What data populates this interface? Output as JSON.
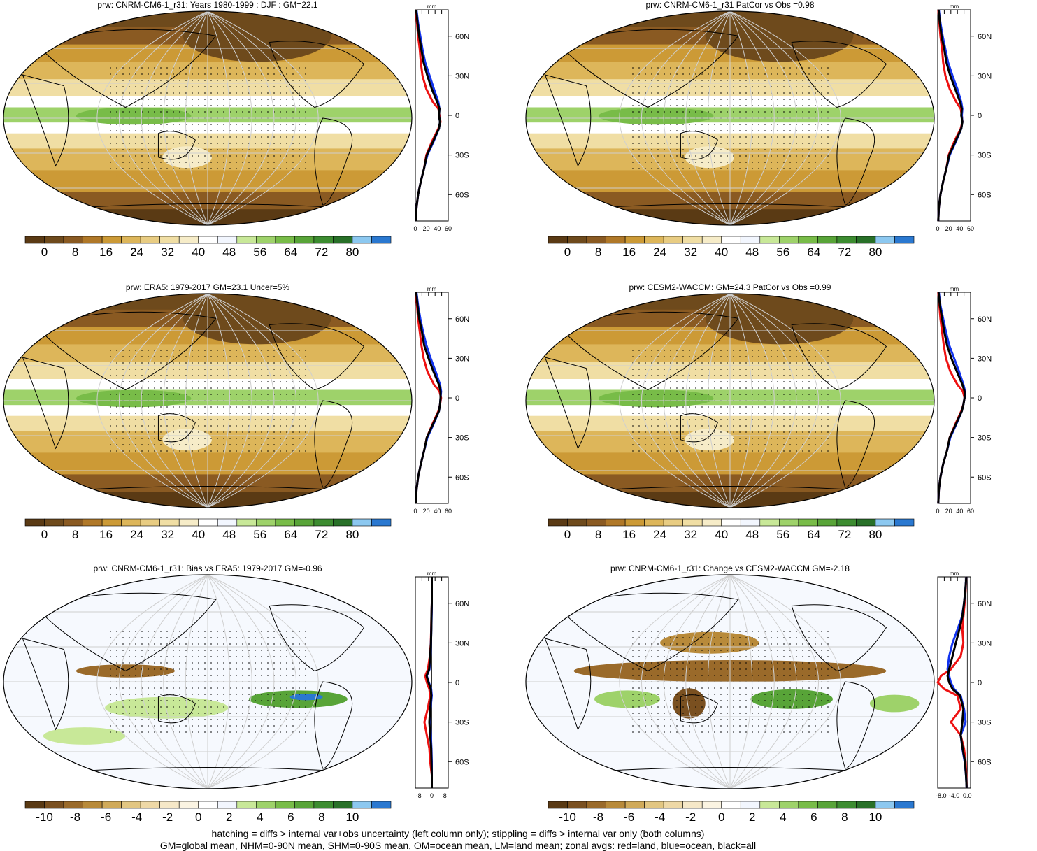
{
  "footer": {
    "line1": "hatching = diffs > internal var+obs uncertainty (left column only); stippling = diffs > internal var only (both columns)",
    "line2": "GM=global mean, NHM=0-90N mean, SHM=0-90S mean, OM=ocean mean, LM=land mean; zonal avgs: red=land, blue=ocean, black=all"
  },
  "colors": {
    "land": "#ee1111",
    "ocean": "#1133ee",
    "all": "#000000",
    "abs_palette": [
      "#5a3a14",
      "#6e4a1c",
      "#8a5a22",
      "#b07828",
      "#cc9a36",
      "#ddb65a",
      "#e8cc82",
      "#f0dea4",
      "#f6ecc8",
      "#ffffff",
      "#f2f6fe",
      "#c8e898",
      "#9ed26a",
      "#78bc48",
      "#58a438",
      "#3c8c30",
      "#287028",
      "#8cc8f0",
      "#2a78d0"
    ],
    "diff_palette": [
      "#5a3a14",
      "#7a5020",
      "#9a6a2a",
      "#b88a3a",
      "#d0aa5a",
      "#e2c682",
      "#eed8a6",
      "#f6e8c8",
      "#fbf4e2",
      "#ffffff",
      "#f2f6fe",
      "#c8e898",
      "#9ed26a",
      "#78bc48",
      "#58a438",
      "#3c8c30",
      "#287028",
      "#8cc8f0",
      "#2a78d0"
    ]
  },
  "chart_data": [
    {
      "type": "heatmap",
      "title": "prw: CNRM-CM6-1_r31: Years 1980-1999 : DJF : GM=22.1",
      "colorbar": {
        "ticks": [
          "0",
          "8",
          "16",
          "24",
          "32",
          "40",
          "48",
          "56",
          "64",
          "72",
          "80"
        ]
      },
      "zonal": {
        "unit": "mm",
        "ytick_labels": [
          "60N",
          "30N",
          "0",
          "30S",
          "60S"
        ],
        "xtick_labels": [
          "0",
          "20",
          "40",
          "60"
        ],
        "xlim": [
          0,
          60
        ],
        "lat": [
          80,
          70,
          60,
          50,
          40,
          30,
          20,
          10,
          5,
          0,
          -5,
          -10,
          -20,
          -30,
          -40,
          -50,
          -60,
          -70,
          -80
        ],
        "series": [
          {
            "name": "land",
            "values": [
              1,
              3,
              5,
              8,
              10,
              13,
              20,
              32,
              42,
              44,
              46,
              42,
              30,
              20,
              16,
              10,
              5,
              2,
              1
            ]
          },
          {
            "name": "ocean",
            "values": [
              2,
              5,
              9,
              13,
              18,
              26,
              34,
              42,
              44,
              43,
              45,
              43,
              33,
              22,
              16,
              10,
              5,
              2,
              1
            ]
          },
          {
            "name": "all",
            "values": [
              1.5,
              4,
              7,
              11,
              15,
              22,
              30,
              40,
              44,
              43,
              45,
              43,
              32,
              21,
              16,
              10,
              5,
              2,
              1
            ]
          }
        ]
      }
    },
    {
      "type": "heatmap",
      "title": "prw: CNRM-CM6-1_r31 PatCor vs Obs =0.98",
      "colorbar": {
        "ticks": [
          "0",
          "8",
          "16",
          "24",
          "32",
          "40",
          "48",
          "56",
          "64",
          "72",
          "80"
        ]
      },
      "zonal": {
        "unit": "mm",
        "ytick_labels": [
          "60N",
          "30N",
          "0",
          "30S",
          "60S"
        ],
        "xtick_labels": [
          "0",
          "20",
          "40",
          "60"
        ],
        "xlim": [
          0,
          60
        ],
        "lat": [
          80,
          70,
          60,
          50,
          40,
          30,
          20,
          10,
          5,
          0,
          -5,
          -10,
          -20,
          -30,
          -40,
          -50,
          -60,
          -70,
          -80
        ],
        "series": [
          {
            "name": "land",
            "values": [
              1,
              3,
              5,
              8,
              10,
              14,
              22,
              34,
              42,
              44,
              45,
              42,
              30,
              20,
              16,
              10,
              5,
              2,
              1
            ]
          },
          {
            "name": "ocean",
            "values": [
              2,
              5,
              9,
              14,
              19,
              27,
              36,
              43,
              45,
              44,
              45,
              43,
              33,
              22,
              16,
              10,
              5,
              2,
              1
            ]
          },
          {
            "name": "all",
            "values": [
              1.5,
              4,
              7,
              12,
              16,
              23,
              32,
              41,
              44,
              43,
              45,
              43,
              32,
              21,
              16,
              10,
              5,
              2,
              1
            ]
          }
        ]
      }
    },
    {
      "type": "heatmap",
      "title": "prw: ERA5: 1979-2017 GM=23.1 Uncer=5%",
      "colorbar": {
        "ticks": [
          "0",
          "8",
          "16",
          "24",
          "32",
          "40",
          "48",
          "56",
          "64",
          "72",
          "80"
        ]
      },
      "zonal": {
        "unit": "mm",
        "ytick_labels": [
          "60N",
          "30N",
          "0",
          "30S",
          "60S"
        ],
        "xtick_labels": [
          "0",
          "20",
          "40",
          "60"
        ],
        "xlim": [
          0,
          60
        ],
        "lat": [
          80,
          70,
          60,
          50,
          40,
          30,
          20,
          10,
          5,
          0,
          -5,
          -10,
          -20,
          -30,
          -40,
          -50,
          -60,
          -70,
          -80
        ],
        "series": [
          {
            "name": "land",
            "values": [
              1,
              3,
              5,
              8,
              11,
              15,
              22,
              34,
              44,
              47,
              45,
              42,
              31,
              21,
              16,
              10,
              5,
              2,
              1
            ]
          },
          {
            "name": "ocean",
            "values": [
              2,
              5,
              9,
              14,
              20,
              28,
              37,
              45,
              47,
              46,
              45,
              43,
              33,
              22,
              16,
              10,
              5,
              2,
              1
            ]
          },
          {
            "name": "all",
            "values": [
              1.5,
              4,
              7,
              12,
              16,
              24,
              33,
              43,
              46,
              46,
              45,
              43,
              32,
              21,
              16,
              10,
              5,
              2,
              1
            ]
          }
        ]
      }
    },
    {
      "type": "heatmap",
      "title": "prw: CESM2-WACCM: GM=24.3 PatCor vs Obs =0.99",
      "colorbar": {
        "ticks": [
          "0",
          "8",
          "16",
          "24",
          "32",
          "40",
          "48",
          "56",
          "64",
          "72",
          "80"
        ]
      },
      "zonal": {
        "unit": "mm",
        "ytick_labels": [
          "60N",
          "30N",
          "0",
          "30S",
          "60S"
        ],
        "xtick_labels": [
          "0",
          "20",
          "40",
          "60"
        ],
        "xlim": [
          0,
          60
        ],
        "lat": [
          80,
          70,
          60,
          50,
          40,
          30,
          20,
          10,
          5,
          0,
          -5,
          -10,
          -20,
          -30,
          -40,
          -50,
          -60,
          -70,
          -80
        ],
        "series": [
          {
            "name": "land",
            "values": [
              1,
              3,
              5,
              8,
              11,
              15,
              23,
              36,
              46,
              49,
              47,
              43,
              32,
              22,
              17,
              10,
              5,
              2,
              1
            ]
          },
          {
            "name": "ocean",
            "values": [
              2,
              5,
              10,
              15,
              21,
              30,
              39,
              47,
              50,
              49,
              47,
              44,
              34,
              23,
              17,
              10,
              5,
              2,
              1
            ]
          },
          {
            "name": "all",
            "values": [
              1.5,
              4,
              8,
              12,
              17,
              25,
              35,
              45,
              49,
              49,
              47,
              44,
              33,
              22,
              17,
              10,
              5,
              2,
              1
            ]
          }
        ]
      }
    },
    {
      "type": "heatmap",
      "title": "prw: CNRM-CM6-1_r31: Bias vs ERA5: 1979-2017 GM=-0.96",
      "colorbar": {
        "ticks": [
          "-10",
          "-8",
          "-6",
          "-4",
          "-2",
          "0",
          "2",
          "4",
          "6",
          "8",
          "10"
        ]
      },
      "zonal": {
        "unit": "mm",
        "ytick_labels": [
          "60N",
          "30N",
          "0",
          "30S",
          "60S"
        ],
        "xtick_labels": [
          "-8",
          "0",
          "8"
        ],
        "xlim": [
          -10,
          10
        ],
        "lat": [
          80,
          70,
          60,
          50,
          40,
          30,
          20,
          10,
          5,
          0,
          -5,
          -10,
          -20,
          -30,
          -40,
          -50,
          -60,
          -70,
          -80
        ],
        "series": [
          {
            "name": "land",
            "values": [
              0,
              0,
              0,
              -0.2,
              -0.4,
              -0.6,
              -1.2,
              -2.4,
              -4,
              -3,
              -1.5,
              -1,
              -2.5,
              -4.5,
              -3,
              -1.5,
              -1,
              0,
              0
            ]
          },
          {
            "name": "ocean",
            "values": [
              0,
              0,
              0,
              -0.1,
              -0.3,
              -0.5,
              -0.8,
              -1.4,
              -3,
              -1.8,
              -0.4,
              0,
              -0.8,
              -1,
              -0.6,
              -0.2,
              0,
              0,
              0
            ]
          },
          {
            "name": "all",
            "values": [
              0,
              0,
              0,
              -0.2,
              -0.3,
              -0.5,
              -1,
              -1.6,
              -3.2,
              -2,
              -0.6,
              -0.3,
              -1,
              -1.5,
              -1,
              -0.4,
              -0.2,
              0,
              0
            ]
          }
        ]
      }
    },
    {
      "type": "heatmap",
      "title": "prw: CNRM-CM6-1_r31: Change vs CESM2-WACCM GM=-2.18",
      "colorbar": {
        "ticks": [
          "-10",
          "-8",
          "-6",
          "-4",
          "-2",
          "0",
          "2",
          "4",
          "6",
          "8",
          "10"
        ]
      },
      "zonal": {
        "unit": "mm",
        "ytick_labels": [
          "60N",
          "30N",
          "0",
          "30S",
          "60S"
        ],
        "xtick_labels": [
          "-8.0",
          "-4.0",
          "0.0"
        ],
        "xlim": [
          -9,
          1
        ],
        "lat": [
          80,
          70,
          60,
          50,
          40,
          30,
          20,
          10,
          5,
          0,
          -5,
          -10,
          -20,
          -30,
          -40,
          -50,
          -60,
          -70,
          -80
        ],
        "series": [
          {
            "name": "land",
            "values": [
              -0.3,
              -0.5,
              -0.8,
              -1.2,
              -1.5,
              -1.2,
              -2,
              -5,
              -8,
              -9,
              -7,
              -3,
              -2,
              -5,
              -2,
              -1,
              -0.5,
              -0.3,
              -0.2
            ]
          },
          {
            "name": "ocean",
            "values": [
              -0.3,
              -0.6,
              -1,
              -1.6,
              -3,
              -4.5,
              -5.5,
              -6,
              -5.5,
              -5,
              -4,
              -2,
              -1,
              -0.5,
              -2,
              -1.5,
              -0.8,
              -0.4,
              -0.2
            ]
          },
          {
            "name": "all",
            "values": [
              -0.3,
              -0.6,
              -1,
              -1.5,
              -2.4,
              -3.5,
              -4.5,
              -5.5,
              -6,
              -5.5,
              -4.5,
              -2.2,
              -1.2,
              -1.5,
              -2,
              -1.4,
              -0.7,
              -0.4,
              -0.2
            ]
          }
        ]
      }
    }
  ]
}
